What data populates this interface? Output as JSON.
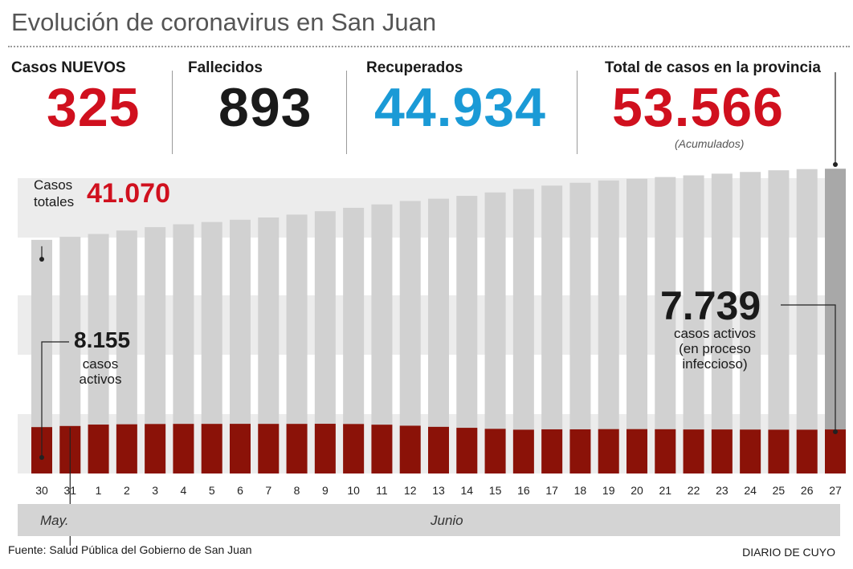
{
  "header": {
    "title": "Evolución de coronavirus en San Juan",
    "stats": [
      {
        "label": "Casos NUEVOS",
        "value": "325",
        "color": "#d0101e"
      },
      {
        "label": "Fallecidos",
        "value": "893",
        "color": "#1a1a1a"
      },
      {
        "label": "Recuperados",
        "value": "44.934",
        "color": "#1a9ad6"
      },
      {
        "label": "Total de casos en la provincia",
        "value": "53.566",
        "color": "#d0101e"
      }
    ],
    "accumulated_note": "(Acumulados)"
  },
  "annotations": {
    "total_label": "Casos\ntotales",
    "total_value": "41.070",
    "first_active_value": "8.155",
    "first_active_label": "casos\nactivos",
    "last_active_value": "7.739",
    "last_active_label": "casos activos\n(en proceso\ninfeccioso)"
  },
  "months": {
    "may": "May.",
    "june": "Junio"
  },
  "footer": {
    "source": "Fuente: Salud Pública del Gobierno de San Juan",
    "brand": "DIARIO DE CUYO"
  },
  "colors": {
    "total_bar": "#d1d1d1",
    "last_total_bar": "#a8a8a8",
    "active_bar": "#8b1208",
    "band": "#ececec",
    "accent_red": "#d0101e"
  },
  "chart_data": {
    "type": "bar",
    "categories": [
      "30",
      "31",
      "1",
      "2",
      "3",
      "4",
      "5",
      "6",
      "7",
      "8",
      "9",
      "10",
      "11",
      "12",
      "13",
      "14",
      "15",
      "16",
      "17",
      "18",
      "19",
      "20",
      "21",
      "22",
      "23",
      "24",
      "25",
      "26",
      "27"
    ],
    "series": [
      {
        "name": "Casos totales",
        "values": [
          41070,
          41600,
          42100,
          42700,
          43300,
          43800,
          44200,
          44600,
          45000,
          45500,
          46100,
          46700,
          47300,
          47900,
          48300,
          48800,
          49400,
          50000,
          50600,
          51100,
          51500,
          51800,
          52100,
          52400,
          52700,
          53000,
          53300,
          53500,
          53566
        ]
      },
      {
        "name": "Casos activos",
        "values": [
          8155,
          8350,
          8600,
          8650,
          8700,
          8720,
          8720,
          8730,
          8720,
          8720,
          8740,
          8700,
          8580,
          8400,
          8200,
          8030,
          7850,
          7700,
          7760,
          7760,
          7800,
          7800,
          7780,
          7740,
          7740,
          7720,
          7700,
          7700,
          7739
        ]
      }
    ],
    "ylim": [
      0,
      56000
    ]
  }
}
